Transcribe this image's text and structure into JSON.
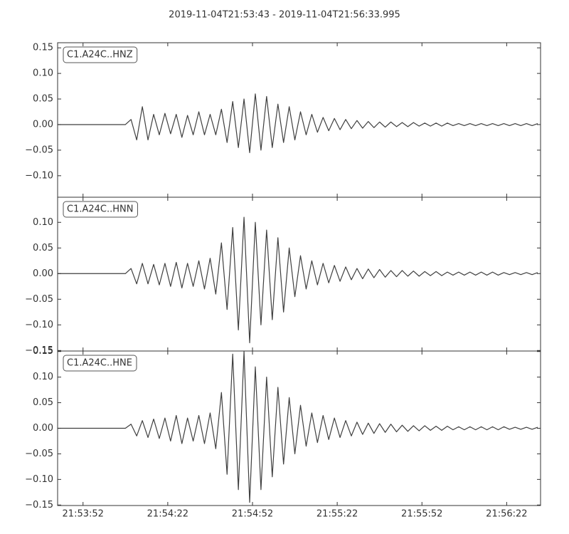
{
  "title": "2019-11-04T21:53:43  -  2019-11-04T21:56:33.995",
  "chart_data": [
    {
      "type": "line",
      "label": "C1.A24C..HNZ",
      "color": "#3f3f3f",
      "xlim": [
        0,
        170.995
      ],
      "ylim": [
        -0.142,
        0.16
      ],
      "yticks": [
        {
          "value": -0.1,
          "label": "−0.10"
        },
        {
          "value": -0.05,
          "label": "−0.05"
        },
        {
          "value": 0,
          "label": "0.00"
        },
        {
          "value": 0.05,
          "label": "0.05"
        },
        {
          "value": 0.1,
          "label": "0.10"
        },
        {
          "value": 0.15,
          "label": "0.15"
        }
      ],
      "x": [
        0,
        2,
        4,
        6,
        8,
        10,
        12,
        14,
        16,
        18,
        20,
        22,
        24,
        26,
        28,
        30,
        32,
        34,
        36,
        38,
        40,
        42,
        44,
        46,
        48,
        50,
        52,
        54,
        56,
        58,
        60,
        62,
        64,
        66,
        68,
        70,
        72,
        74,
        76,
        78,
        80,
        82,
        84,
        86,
        88,
        90,
        92,
        94,
        96,
        98,
        100,
        102,
        104,
        106,
        108,
        110,
        112,
        114,
        116,
        118,
        120,
        122,
        124,
        126,
        128,
        130,
        132,
        134,
        136,
        138,
        140,
        142,
        144,
        146,
        148,
        150,
        152,
        154,
        156,
        158,
        160,
        162,
        164,
        166,
        168,
        170
      ],
      "values": [
        0,
        0,
        0,
        0,
        0,
        0,
        0,
        0,
        0,
        0,
        0,
        0,
        0,
        0.01,
        -0.03,
        0.035,
        -0.03,
        0.02,
        -0.02,
        0.022,
        -0.018,
        0.02,
        -0.025,
        0.018,
        -0.02,
        0.025,
        -0.02,
        0.02,
        -0.02,
        0.03,
        -0.035,
        0.045,
        -0.045,
        0.05,
        -0.055,
        0.06,
        -0.05,
        0.055,
        -0.045,
        0.04,
        -0.035,
        0.035,
        -0.03,
        0.025,
        -0.02,
        0.02,
        -0.015,
        0.014,
        -0.012,
        0.012,
        -0.01,
        0.01,
        -0.008,
        0.008,
        -0.007,
        0.006,
        -0.006,
        0.005,
        -0.005,
        0.005,
        -0.004,
        0.004,
        -0.004,
        0.004,
        -0.003,
        0.003,
        -0.003,
        0.003,
        -0.003,
        0.003,
        -0.002,
        0.002,
        -0.002,
        0.002,
        -0.002,
        0.002,
        -0.002,
        0.002,
        -0.002,
        0.002,
        -0.002,
        0.002,
        -0.002,
        0.002,
        -0.002,
        0.002
      ]
    },
    {
      "type": "line",
      "label": "C1.A24C..HNN",
      "color": "#3f3f3f",
      "xlim": [
        0,
        170.995
      ],
      "ylim": [
        -0.151,
        0.149
      ],
      "yticks": [
        {
          "value": -0.15,
          "label": "−0.15"
        },
        {
          "value": -0.1,
          "label": "−0.10"
        },
        {
          "value": -0.05,
          "label": "−0.05"
        },
        {
          "value": 0,
          "label": "0.00"
        },
        {
          "value": 0.05,
          "label": "0.05"
        },
        {
          "value": 0.1,
          "label": "0.10"
        }
      ],
      "x": [
        0,
        2,
        4,
        6,
        8,
        10,
        12,
        14,
        16,
        18,
        20,
        22,
        24,
        26,
        28,
        30,
        32,
        34,
        36,
        38,
        40,
        42,
        44,
        46,
        48,
        50,
        52,
        54,
        56,
        58,
        60,
        62,
        64,
        66,
        68,
        70,
        72,
        74,
        76,
        78,
        80,
        82,
        84,
        86,
        88,
        90,
        92,
        94,
        96,
        98,
        100,
        102,
        104,
        106,
        108,
        110,
        112,
        114,
        116,
        118,
        120,
        122,
        124,
        126,
        128,
        130,
        132,
        134,
        136,
        138,
        140,
        142,
        144,
        146,
        148,
        150,
        152,
        154,
        156,
        158,
        160,
        162,
        164,
        166,
        168,
        170
      ],
      "values": [
        0,
        0,
        0,
        0,
        0,
        0,
        0,
        0,
        0,
        0,
        0,
        0,
        0,
        0.01,
        -0.02,
        0.02,
        -0.02,
        0.018,
        -0.022,
        0.02,
        -0.025,
        0.022,
        -0.028,
        0.02,
        -0.025,
        0.025,
        -0.03,
        0.03,
        -0.04,
        0.06,
        -0.07,
        0.09,
        -0.11,
        0.11,
        -0.135,
        0.1,
        -0.1,
        0.085,
        -0.09,
        0.07,
        -0.075,
        0.05,
        -0.045,
        0.035,
        -0.03,
        0.025,
        -0.022,
        0.02,
        -0.018,
        0.016,
        -0.015,
        0.013,
        -0.012,
        0.01,
        -0.01,
        0.009,
        -0.008,
        0.008,
        -0.007,
        0.006,
        -0.006,
        0.006,
        -0.005,
        0.005,
        -0.005,
        0.004,
        -0.004,
        0.004,
        -0.004,
        0.003,
        -0.003,
        0.003,
        -0.003,
        0.003,
        -0.003,
        0.003,
        -0.003,
        0.003,
        -0.003,
        0.002,
        -0.002,
        0.002,
        -0.002,
        0.002,
        -0.002,
        0.002
      ]
    },
    {
      "type": "line",
      "label": "C1.A24C..HNE",
      "color": "#3f3f3f",
      "xlim": [
        0,
        170.995
      ],
      "ylim": [
        -0.151,
        0.151
      ],
      "xticks": [
        {
          "value": 9,
          "label": "21:53:52"
        },
        {
          "value": 39,
          "label": "21:54:22"
        },
        {
          "value": 69,
          "label": "21:54:52"
        },
        {
          "value": 99,
          "label": "21:55:22"
        },
        {
          "value": 129,
          "label": "21:55:52"
        },
        {
          "value": 159,
          "label": "21:56:22"
        }
      ],
      "yticks": [
        {
          "value": -0.15,
          "label": "−0.15"
        },
        {
          "value": -0.1,
          "label": "−0.10"
        },
        {
          "value": -0.05,
          "label": "−0.05"
        },
        {
          "value": 0,
          "label": "0.00"
        },
        {
          "value": 0.05,
          "label": "0.05"
        },
        {
          "value": 0.1,
          "label": "0.10"
        },
        {
          "value": 0.15,
          "label": "0.15"
        }
      ],
      "x": [
        0,
        2,
        4,
        6,
        8,
        10,
        12,
        14,
        16,
        18,
        20,
        22,
        24,
        26,
        28,
        30,
        32,
        34,
        36,
        38,
        40,
        42,
        44,
        46,
        48,
        50,
        52,
        54,
        56,
        58,
        60,
        62,
        64,
        66,
        68,
        70,
        72,
        74,
        76,
        78,
        80,
        82,
        84,
        86,
        88,
        90,
        92,
        94,
        96,
        98,
        100,
        102,
        104,
        106,
        108,
        110,
        112,
        114,
        116,
        118,
        120,
        122,
        124,
        126,
        128,
        130,
        132,
        134,
        136,
        138,
        140,
        142,
        144,
        146,
        148,
        150,
        152,
        154,
        156,
        158,
        160,
        162,
        164,
        166,
        168,
        170
      ],
      "values": [
        0,
        0,
        0,
        0,
        0,
        0,
        0,
        0,
        0,
        0,
        0,
        0,
        0,
        0.008,
        -0.015,
        0.015,
        -0.018,
        0.018,
        -0.02,
        0.02,
        -0.025,
        0.025,
        -0.03,
        0.02,
        -0.025,
        0.025,
        -0.03,
        0.03,
        -0.04,
        0.07,
        -0.09,
        0.145,
        -0.12,
        0.15,
        -0.145,
        0.12,
        -0.12,
        0.1,
        -0.095,
        0.08,
        -0.07,
        0.06,
        -0.05,
        0.045,
        -0.035,
        0.03,
        -0.028,
        0.025,
        -0.022,
        0.02,
        -0.018,
        0.015,
        -0.015,
        0.012,
        -0.012,
        0.01,
        -0.01,
        0.009,
        -0.008,
        0.008,
        -0.007,
        0.006,
        -0.006,
        0.005,
        -0.005,
        0.005,
        -0.004,
        0.004,
        -0.004,
        0.004,
        -0.003,
        0.003,
        -0.003,
        0.003,
        -0.003,
        0.003,
        -0.003,
        0.003,
        -0.003,
        0.003,
        -0.002,
        0.002,
        -0.002,
        0.002,
        -0.002,
        0.002
      ]
    }
  ]
}
